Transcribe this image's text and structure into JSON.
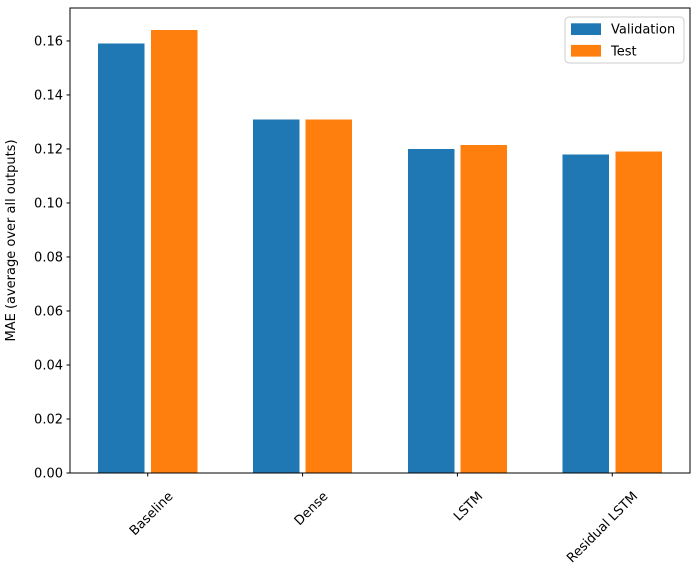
{
  "figure": {
    "background": "#ffffff"
  },
  "chart_data": {
    "type": "bar",
    "title": "",
    "xlabel": "",
    "ylabel": "MAE (average over all outputs)",
    "categories": [
      "Baseline",
      "Dense",
      "LSTM",
      "Residual LSTM"
    ],
    "series": [
      {
        "name": "Validation",
        "color": "#1f77b4",
        "values": [
          0.159,
          0.131,
          0.12,
          0.118
        ]
      },
      {
        "name": "Test",
        "color": "#ff7f0e",
        "values": [
          0.164,
          0.131,
          0.1215,
          0.119
        ]
      }
    ],
    "ylim": [
      0,
      0.1722
    ],
    "yticks": [
      0.0,
      0.02,
      0.04,
      0.06,
      0.08,
      0.1,
      0.12,
      0.14,
      0.16
    ],
    "ytick_decimals": 2,
    "bar_width": 0.3,
    "bar_offset": 0.17,
    "xtick_rotation": 45,
    "grid": false,
    "legend": {
      "position": "upper right",
      "entries": [
        "Validation",
        "Test"
      ]
    },
    "colors": {
      "spine": "#000000",
      "tick": "#000000",
      "legend_border": "#cccccc",
      "legend_background": "#ffffff"
    }
  }
}
